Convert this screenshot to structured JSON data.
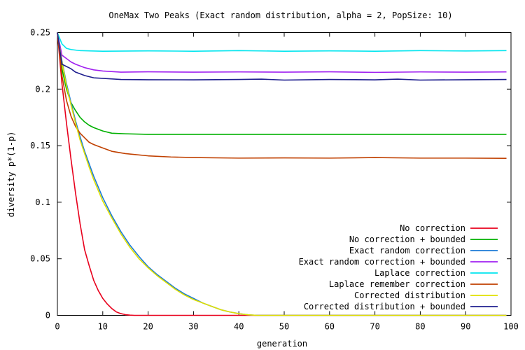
{
  "chart_data": {
    "type": "line",
    "title": "OneMax Two Peaks (Exact random distribution, alpha = 2, PopSize: 10)",
    "xlabel": "generation",
    "ylabel": "diversity p*(1-p)",
    "xlim": [
      0,
      100
    ],
    "ylim": [
      0,
      0.25
    ],
    "xticks": [
      "0",
      "10",
      "20",
      "30",
      "40",
      "50",
      "60",
      "70",
      "80",
      "90",
      "100"
    ],
    "yticks": [
      "0",
      "0.05",
      "0.1",
      "0.15",
      "0.2",
      "0.25"
    ],
    "grid": false,
    "legend_position": "bottom-right",
    "series": [
      {
        "name": "No correction",
        "color": "#e8001c",
        "points": [
          [
            0,
            0.25
          ],
          [
            1,
            0.205
          ],
          [
            2,
            0.17
          ],
          [
            3,
            0.138
          ],
          [
            4,
            0.108
          ],
          [
            5,
            0.081
          ],
          [
            6,
            0.058
          ],
          [
            7,
            0.044
          ],
          [
            8,
            0.031
          ],
          [
            9,
            0.022
          ],
          [
            10,
            0.015
          ],
          [
            11,
            0.01
          ],
          [
            12,
            0.006
          ],
          [
            13,
            0.003
          ],
          [
            14,
            0.0015
          ],
          [
            15,
            0.0006
          ],
          [
            16,
            0.0002
          ],
          [
            17,
            0
          ],
          [
            99,
            0
          ]
        ]
      },
      {
        "name": "No correction + bounded",
        "color": "#00b000",
        "points": [
          [
            0,
            0.25
          ],
          [
            1,
            0.218
          ],
          [
            2,
            0.2
          ],
          [
            3,
            0.188
          ],
          [
            4,
            0.181
          ],
          [
            5,
            0.175
          ],
          [
            6,
            0.171
          ],
          [
            7,
            0.168
          ],
          [
            8,
            0.166
          ],
          [
            10,
            0.163
          ],
          [
            12,
            0.161
          ],
          [
            15,
            0.1605
          ],
          [
            20,
            0.16
          ],
          [
            99,
            0.16
          ]
        ]
      },
      {
        "name": "Exact random correction",
        "color": "#1b7ad6",
        "points": [
          [
            0,
            0.25
          ],
          [
            1,
            0.225
          ],
          [
            2,
            0.205
          ],
          [
            3,
            0.188
          ],
          [
            4,
            0.172
          ],
          [
            5,
            0.158
          ],
          [
            6,
            0.145
          ],
          [
            7,
            0.134
          ],
          [
            8,
            0.123
          ],
          [
            10,
            0.104
          ],
          [
            12,
            0.088
          ],
          [
            14,
            0.074
          ],
          [
            16,
            0.062
          ],
          [
            18,
            0.052
          ],
          [
            20,
            0.043
          ],
          [
            22,
            0.036
          ],
          [
            24,
            0.03
          ],
          [
            26,
            0.024
          ],
          [
            28,
            0.019
          ],
          [
            30,
            0.015
          ],
          [
            32,
            0.011
          ],
          [
            34,
            0.008
          ],
          [
            36,
            0.005
          ],
          [
            38,
            0.003
          ],
          [
            40,
            0.0015
          ],
          [
            42,
            0.0005
          ],
          [
            44,
            0
          ],
          [
            99,
            0
          ]
        ]
      },
      {
        "name": "Exact random correction + bounded",
        "color": "#a020f0",
        "points": [
          [
            0,
            0.25
          ],
          [
            1,
            0.23
          ],
          [
            2,
            0.227
          ],
          [
            3,
            0.224
          ],
          [
            4,
            0.222
          ],
          [
            6,
            0.219
          ],
          [
            8,
            0.217
          ],
          [
            10,
            0.216
          ],
          [
            14,
            0.215
          ],
          [
            20,
            0.2153
          ],
          [
            30,
            0.215
          ],
          [
            40,
            0.2152
          ],
          [
            50,
            0.215
          ],
          [
            60,
            0.2153
          ],
          [
            70,
            0.2148
          ],
          [
            80,
            0.2152
          ],
          [
            90,
            0.215
          ],
          [
            99,
            0.2152
          ]
        ]
      },
      {
        "name": "Laplace correction",
        "color": "#00e5ee",
        "points": [
          [
            0,
            0.25
          ],
          [
            1,
            0.24
          ],
          [
            2,
            0.236
          ],
          [
            3,
            0.235
          ],
          [
            5,
            0.234
          ],
          [
            10,
            0.2335
          ],
          [
            20,
            0.2338
          ],
          [
            30,
            0.2335
          ],
          [
            40,
            0.234
          ],
          [
            50,
            0.2335
          ],
          [
            60,
            0.2338
          ],
          [
            70,
            0.2335
          ],
          [
            80,
            0.234
          ],
          [
            90,
            0.2337
          ],
          [
            99,
            0.234
          ]
        ]
      },
      {
        "name": "Laplace remember correction",
        "color": "#c04000",
        "points": [
          [
            0,
            0.25
          ],
          [
            1,
            0.212
          ],
          [
            2,
            0.19
          ],
          [
            3,
            0.176
          ],
          [
            4,
            0.167
          ],
          [
            5,
            0.161
          ],
          [
            6,
            0.157
          ],
          [
            7,
            0.153
          ],
          [
            8,
            0.151
          ],
          [
            10,
            0.148
          ],
          [
            12,
            0.145
          ],
          [
            15,
            0.143
          ],
          [
            20,
            0.141
          ],
          [
            25,
            0.14
          ],
          [
            30,
            0.1395
          ],
          [
            40,
            0.139
          ],
          [
            50,
            0.1392
          ],
          [
            60,
            0.139
          ],
          [
            70,
            0.1395
          ],
          [
            80,
            0.139
          ],
          [
            90,
            0.139
          ],
          [
            99,
            0.1388
          ]
        ]
      },
      {
        "name": "Corrected distribution",
        "color": "#e0e000",
        "points": [
          [
            0,
            0.25
          ],
          [
            1,
            0.224
          ],
          [
            2,
            0.203
          ],
          [
            3,
            0.186
          ],
          [
            4,
            0.17
          ],
          [
            5,
            0.155
          ],
          [
            6,
            0.143
          ],
          [
            7,
            0.131
          ],
          [
            8,
            0.12
          ],
          [
            10,
            0.101
          ],
          [
            12,
            0.086
          ],
          [
            14,
            0.072
          ],
          [
            16,
            0.06
          ],
          [
            18,
            0.05
          ],
          [
            20,
            0.042
          ],
          [
            22,
            0.035
          ],
          [
            24,
            0.029
          ],
          [
            26,
            0.023
          ],
          [
            28,
            0.018
          ],
          [
            30,
            0.014
          ],
          [
            32,
            0.011
          ],
          [
            34,
            0.008
          ],
          [
            36,
            0.005
          ],
          [
            38,
            0.003
          ],
          [
            40,
            0.0015
          ],
          [
            42,
            0.0005
          ],
          [
            44,
            0
          ],
          [
            99,
            0
          ]
        ]
      },
      {
        "name": "Corrected distribution + bounded",
        "color": "#1f1f8f",
        "points": [
          [
            0,
            0.25
          ],
          [
            1,
            0.222
          ],
          [
            2,
            0.22
          ],
          [
            3,
            0.218
          ],
          [
            4,
            0.215
          ],
          [
            6,
            0.212
          ],
          [
            8,
            0.21
          ],
          [
            10,
            0.2095
          ],
          [
            14,
            0.2085
          ],
          [
            20,
            0.2083
          ],
          [
            30,
            0.2082
          ],
          [
            40,
            0.2085
          ],
          [
            45,
            0.2088
          ],
          [
            50,
            0.208
          ],
          [
            60,
            0.2085
          ],
          [
            70,
            0.2082
          ],
          [
            75,
            0.2088
          ],
          [
            80,
            0.208
          ],
          [
            90,
            0.2083
          ],
          [
            99,
            0.2085
          ]
        ]
      }
    ]
  }
}
